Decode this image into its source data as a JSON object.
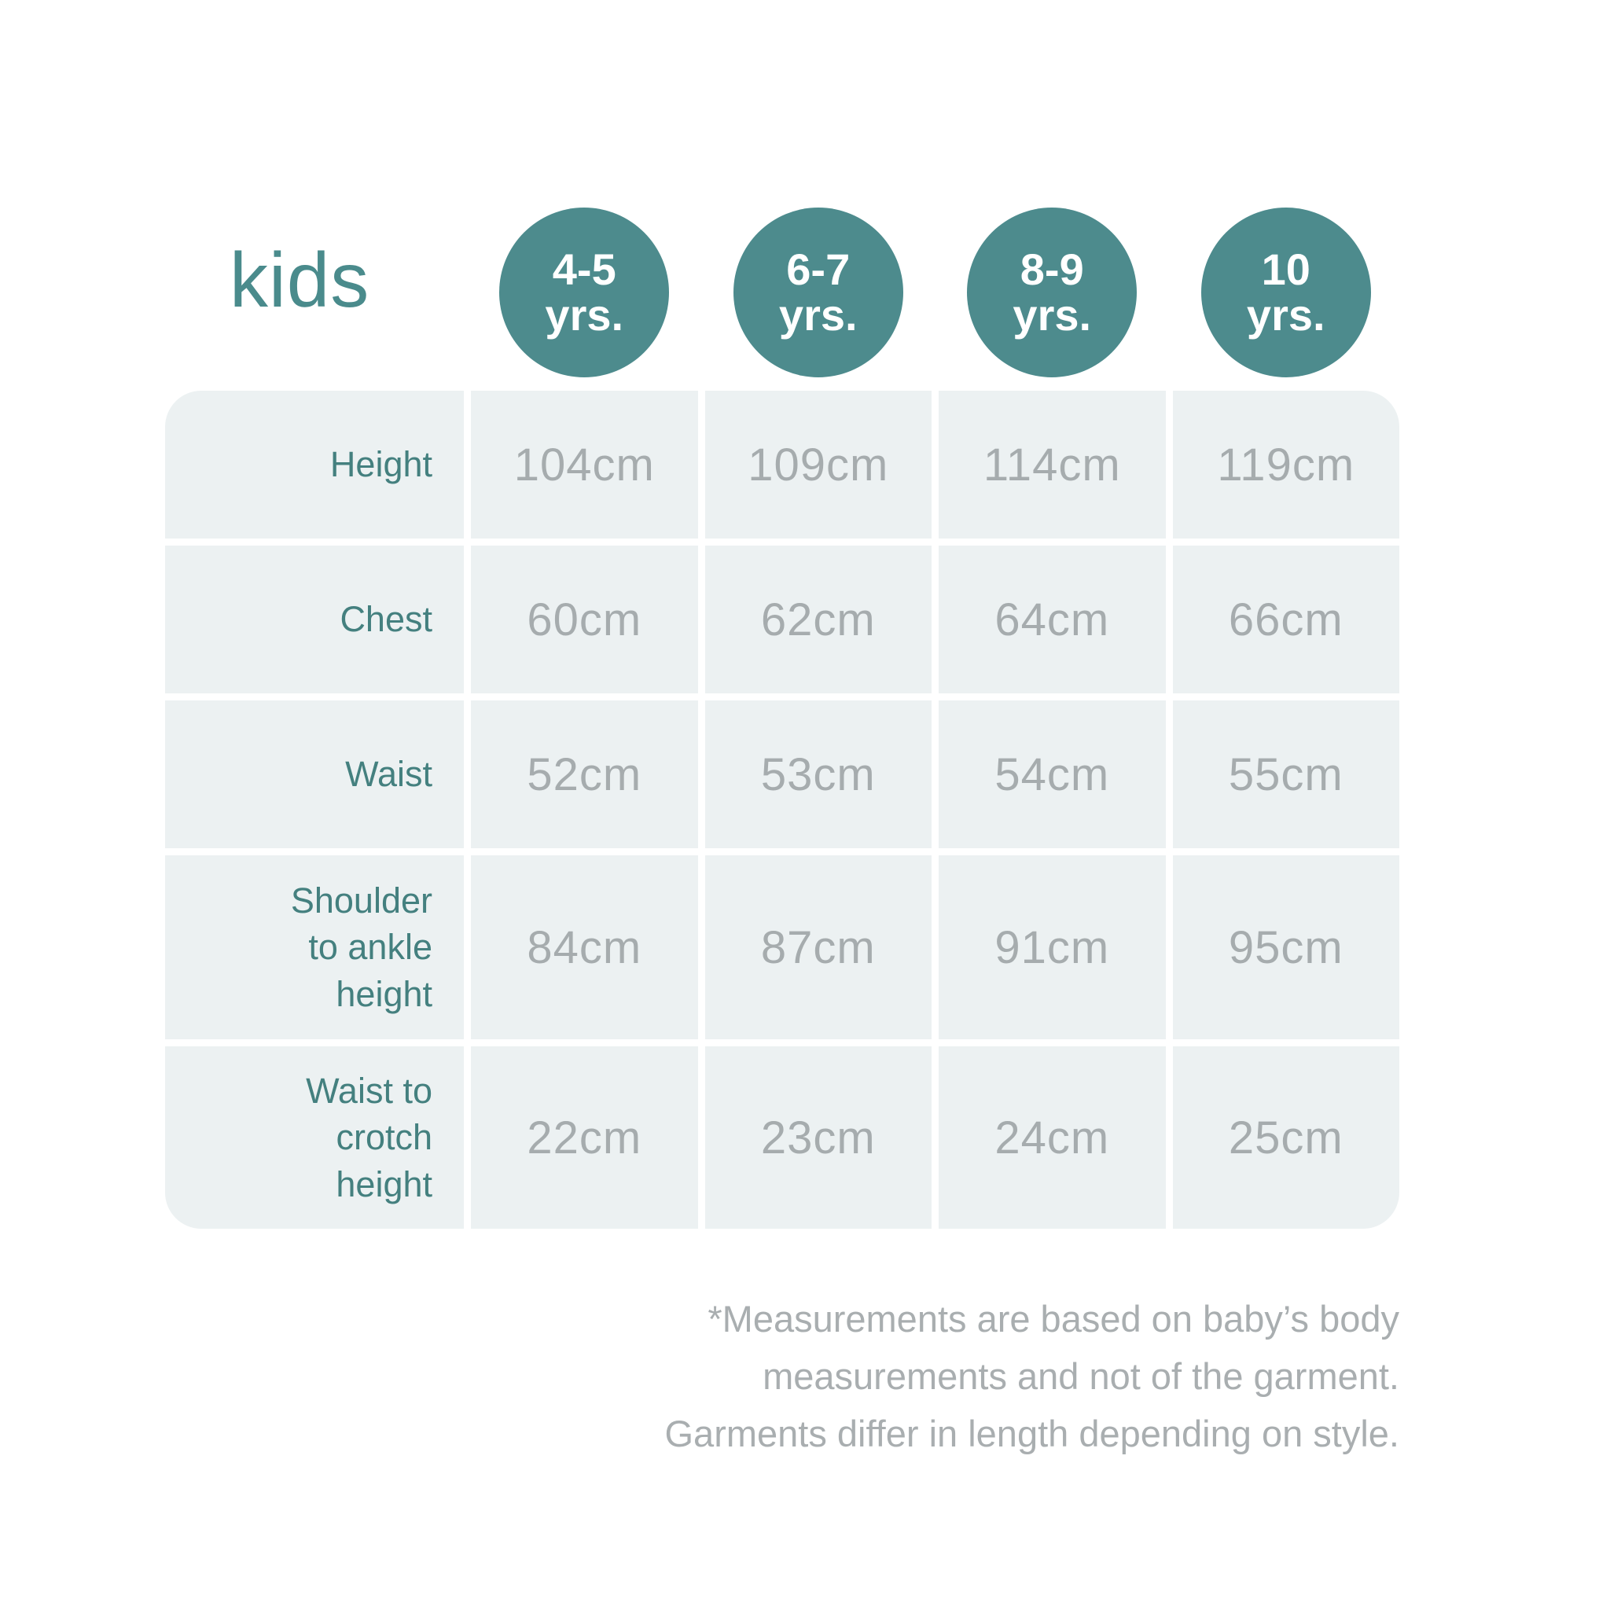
{
  "title": "kids",
  "columns": [
    {
      "age": "4-5",
      "suffix": "yrs."
    },
    {
      "age": "6-7",
      "suffix": "yrs."
    },
    {
      "age": "8-9",
      "suffix": "yrs."
    },
    {
      "age": "10",
      "suffix": "yrs."
    }
  ],
  "rows": [
    {
      "label": "Height",
      "values": [
        "104cm",
        "109cm",
        "114cm",
        "119cm"
      ]
    },
    {
      "label": "Chest",
      "values": [
        "60cm",
        "62cm",
        "64cm",
        "66cm"
      ]
    },
    {
      "label": "Waist",
      "values": [
        "52cm",
        "53cm",
        "54cm",
        "55cm"
      ]
    },
    {
      "label": "Shoulder to ankle height",
      "values": [
        "84cm",
        "87cm",
        "91cm",
        "95cm"
      ]
    },
    {
      "label": "Waist to crotch height",
      "values": [
        "22cm",
        "23cm",
        "24cm",
        "25cm"
      ]
    }
  ],
  "footnote": {
    "line1": "*Measurements are based on baby’s body",
    "line2": "measurements and not of the garment.",
    "line3": "Garments differ in length depending on style."
  },
  "colors": {
    "badge_teal": "#4d8b8d",
    "title_teal": "#4a8b8c",
    "label_teal": "#44807f",
    "cell_background": "#ecf1f2",
    "value_gray": "#a6acae",
    "footnote_gray": "#a9aeb0"
  },
  "chart_data": {
    "type": "table",
    "title": "kids",
    "unit": "cm",
    "columns": [
      "4-5 yrs.",
      "6-7 yrs.",
      "8-9 yrs.",
      "10 yrs."
    ],
    "rows": [
      {
        "label": "Height",
        "values_cm": [
          104,
          109,
          114,
          119
        ]
      },
      {
        "label": "Chest",
        "values_cm": [
          60,
          62,
          64,
          66
        ]
      },
      {
        "label": "Waist",
        "values_cm": [
          52,
          53,
          54,
          55
        ]
      },
      {
        "label": "Shoulder to ankle height",
        "values_cm": [
          84,
          87,
          91,
          95
        ]
      },
      {
        "label": "Waist to crotch height",
        "values_cm": [
          22,
          23,
          24,
          25
        ]
      }
    ],
    "footnote": "*Measurements are based on baby’s body measurements and not of the garment. Garments differ in length depending on style."
  }
}
